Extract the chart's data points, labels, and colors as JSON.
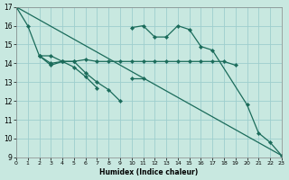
{
  "xlabel": "Humidex (Indice chaleur)",
  "xlim": [
    0,
    23
  ],
  "ylim": [
    9,
    17
  ],
  "yticks": [
    9,
    10,
    11,
    12,
    13,
    14,
    15,
    16,
    17
  ],
  "xticks": [
    0,
    1,
    2,
    3,
    4,
    5,
    6,
    7,
    8,
    9,
    10,
    11,
    12,
    13,
    14,
    15,
    16,
    17,
    18,
    19,
    20,
    21,
    22,
    23
  ],
  "bg_color": "#c8e8e0",
  "grid_color": "#9ecece",
  "line_color": "#1a6b5a",
  "line_color2": "#1a7060",
  "lines": [
    {
      "x": [
        0,
        1,
        2,
        3,
        4,
        5,
        6,
        7,
        8,
        9
      ],
      "y": [
        17.0,
        16.0,
        14.4,
        14.0,
        14.1,
        14.1,
        13.5,
        13.0,
        12.6,
        12.0
      ]
    },
    {
      "x": [
        2,
        3,
        4,
        5,
        6,
        7,
        8,
        9,
        10,
        11,
        12,
        13,
        14,
        15,
        16,
        17,
        18,
        19
      ],
      "y": [
        14.4,
        14.4,
        14.1,
        14.1,
        14.2,
        14.1,
        14.1,
        14.1,
        14.1,
        14.1,
        14.1,
        14.1,
        14.1,
        14.1,
        14.1,
        14.1,
        14.1,
        13.9
      ]
    },
    {
      "x": [
        2,
        3,
        4,
        5,
        6,
        7,
        8,
        9,
        10,
        11
      ],
      "y": [
        14.4,
        13.9,
        14.1,
        13.8,
        13.3,
        12.7,
        null,
        null,
        13.2,
        13.2
      ]
    },
    {
      "x": [
        10,
        11,
        12,
        13,
        14,
        15,
        16,
        17,
        20,
        21,
        22,
        23
      ],
      "y": [
        15.9,
        16.0,
        15.4,
        15.4,
        16.0,
        15.8,
        14.9,
        14.7,
        11.8,
        10.3,
        9.8,
        9.1
      ]
    },
    {
      "x": [
        0,
        23
      ],
      "y": [
        17.0,
        9.1
      ]
    }
  ],
  "markers": [
    true,
    true,
    true,
    true,
    false
  ],
  "markersize": 2.2,
  "linewidth": 0.9
}
